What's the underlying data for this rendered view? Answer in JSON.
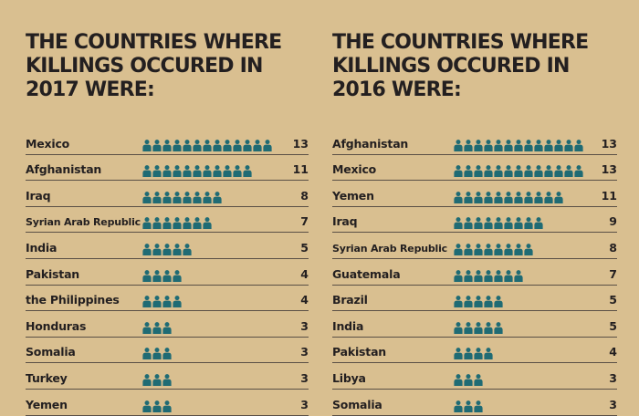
{
  "colors": {
    "background": "#d9bf90",
    "icon": "#1f6b74",
    "text": "#231f20",
    "rule": "#5a4f45"
  },
  "icon_name": "person-icon",
  "chart_data": [
    {
      "type": "table",
      "title": "THE COUNTRIES WHERE\nKILLINGS OCCURED IN\n2017 WERE:",
      "categories": [
        "Mexico",
        "Afghanistan",
        "Iraq",
        "Syrian Arab Republic",
        "India",
        "Pakistan",
        "the Philippines",
        "Honduras",
        "Somalia",
        "Turkey",
        "Yemen"
      ],
      "values": [
        13,
        11,
        8,
        7,
        5,
        4,
        4,
        3,
        3,
        3,
        3
      ]
    },
    {
      "type": "table",
      "title": "THE COUNTRIES WHERE\nKILLINGS OCCURED IN\n2016 WERE:",
      "categories": [
        "Afghanistan",
        "Mexico",
        "Yemen",
        "Iraq",
        "Syrian Arab Republic",
        "Guatemala",
        "Brazil",
        "India",
        "Pakistan",
        "Libya",
        "Somalia"
      ],
      "values": [
        13,
        13,
        11,
        9,
        8,
        7,
        5,
        5,
        4,
        3,
        3
      ]
    }
  ]
}
